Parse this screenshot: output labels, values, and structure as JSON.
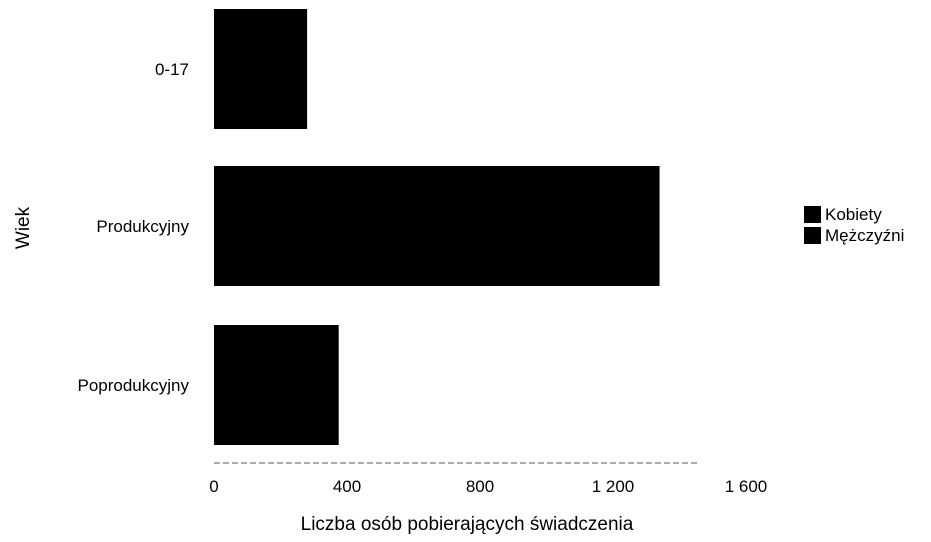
{
  "chart_data": {
    "type": "bar",
    "orientation": "horizontal",
    "categories": [
      "0-17",
      "Produkcyjny",
      "Poprodukcyjny"
    ],
    "series": [
      {
        "name": "Kobiety",
        "values": [
          280,
          1340,
          375
        ]
      },
      {
        "name": "Mężczyźni",
        "values": [
          0,
          0,
          0
        ]
      }
    ],
    "xlabel": "Liczba osób pobierających świadczenia",
    "ylabel": "Wiek",
    "xlim": [
      0,
      1600
    ],
    "xticks": [
      0,
      400,
      800,
      1200,
      1600
    ],
    "xtick_labels": [
      "0",
      "400",
      "800",
      "1 200",
      "1 600"
    ],
    "grid": false,
    "legend_position": "right",
    "colors": {
      "Kobiety": "#000000",
      "Mężczyźni": "#000000"
    }
  }
}
